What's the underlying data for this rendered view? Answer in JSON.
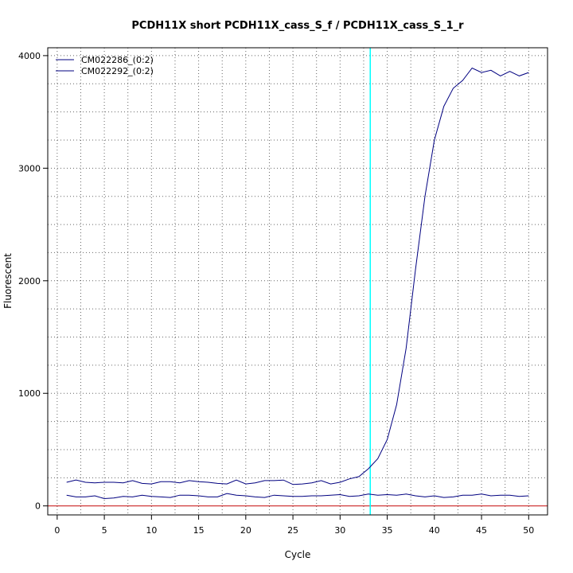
{
  "chart_data": {
    "type": "line",
    "title": "PCDH11X short PCDH11X_cass_S_f / PCDH11X_cass_S_1_r",
    "xlabel": "Cycle",
    "ylabel": "Fluorescent",
    "xlim": [
      -1,
      52
    ],
    "ylim": [
      -80,
      4070
    ],
    "x_ticks": [
      "0",
      "5",
      "10",
      "15",
      "20",
      "25",
      "30",
      "35",
      "40",
      "45",
      "50"
    ],
    "y_ticks": [
      "0",
      "1000",
      "2000",
      "3000",
      "4000"
    ],
    "grid": true,
    "legend_position": "top-left",
    "threshold_x": 33.2,
    "threshold_color": "#00ffff",
    "baseline_y": 0,
    "baseline_color": "#cc2222",
    "x": [
      1,
      2,
      3,
      4,
      5,
      6,
      7,
      8,
      9,
      10,
      11,
      12,
      13,
      14,
      15,
      16,
      17,
      18,
      19,
      20,
      21,
      22,
      23,
      24,
      25,
      26,
      27,
      28,
      29,
      30,
      31,
      32,
      33,
      34,
      35,
      36,
      37,
      38,
      39,
      40,
      41,
      42,
      43,
      44,
      45,
      46,
      47,
      48,
      49,
      50
    ],
    "series": [
      {
        "name": "CM022286_(0:2)",
        "color": "#000080",
        "values": [
          210,
          230,
          210,
          205,
          210,
          210,
          205,
          225,
          200,
          195,
          215,
          215,
          205,
          225,
          215,
          210,
          200,
          195,
          230,
          195,
          205,
          225,
          225,
          230,
          190,
          195,
          205,
          225,
          195,
          210,
          240,
          260,
          330,
          420,
          590,
          900,
          1400,
          2100,
          2750,
          3250,
          3550,
          3710,
          3780,
          3890,
          3850,
          3870,
          3820,
          3860,
          3820,
          3850
        ]
      },
      {
        "name": "CM022292_(0:2)",
        "color": "#000080",
        "values": [
          95,
          80,
          80,
          90,
          65,
          70,
          85,
          80,
          95,
          85,
          80,
          75,
          95,
          95,
          90,
          80,
          80,
          110,
          95,
          90,
          80,
          75,
          95,
          90,
          85,
          85,
          90,
          90,
          95,
          100,
          85,
          90,
          105,
          95,
          100,
          95,
          105,
          90,
          80,
          90,
          75,
          80,
          95,
          95,
          105,
          90,
          95,
          95,
          85,
          90
        ]
      }
    ]
  }
}
